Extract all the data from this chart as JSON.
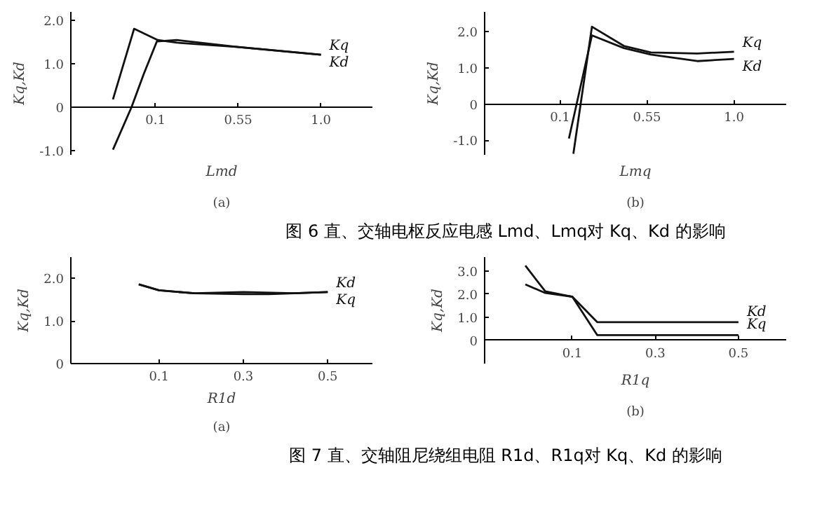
{
  "chart_data": [
    {
      "type": "line",
      "title": "图 6 直、交轴电枢反应电感 Lmd、Lmq对 Kq、Kd 的影响",
      "xlabel": "Lmd",
      "ylabel": "Kq,Kd",
      "xlim": [
        -0.36,
        1.28
      ],
      "ylim": [
        -1.1,
        2.2
      ],
      "xticks": [
        0.1,
        0.55,
        {
          "value": 1.0,
          "label": "1.0"
        }
      ],
      "yticks": [
        {
          "value": -1.0,
          "label": "-1.0"
        },
        {
          "value": 0,
          "label": "0"
        },
        {
          "value": 1.0,
          "label": "1.0"
        },
        {
          "value": 2.0,
          "label": "2.0"
        }
      ],
      "series": [
        {
          "name": "Kq",
          "color": "#111111",
          "x": [
            -0.131,
            -0.016,
            0.113,
            0.216,
            0.55,
            1.0
          ],
          "values": [
            0.18,
            1.81,
            1.55,
            1.49,
            1.39,
            1.21
          ]
        },
        {
          "name": "Kd",
          "color": "#111111",
          "x": [
            -0.131,
            -0.03,
            0.036,
            0.108,
            0.216,
            0.55,
            1.0
          ],
          "values": [
            -0.98,
            0,
            0.76,
            1.52,
            1.55,
            1.39,
            1.21
          ]
        }
      ],
      "annotations": [
        "(a)"
      ]
    },
    {
      "type": "line",
      "xlabel": "Lmq",
      "ylabel": "Kq,Kd",
      "xlim": [
        -0.29,
        1.27
      ],
      "ylim": [
        -1.4,
        2.55
      ],
      "xticks": [
        0.1,
        0.55,
        {
          "value": 1.0,
          "label": "1.0"
        }
      ],
      "yticks": [
        {
          "value": -1.0,
          "label": "-1.0"
        },
        {
          "value": 0,
          "label": "0"
        },
        {
          "value": 1.0,
          "label": "1.0"
        },
        {
          "value": 2.0,
          "label": "2.0"
        }
      ],
      "series": [
        {
          "name": "Kq",
          "color": "#111111",
          "x": [
            0.169,
            0.265,
            0.43,
            0.57,
            0.81,
            1.0
          ],
          "values": [
            -1.37,
            2.14,
            1.61,
            1.43,
            1.4,
            1.45
          ]
        },
        {
          "name": "Kd",
          "color": "#111111",
          "x": [
            0.146,
            0.265,
            0.43,
            0.57,
            0.81,
            1.0
          ],
          "values": [
            -0.95,
            1.9,
            1.55,
            1.37,
            1.19,
            1.25
          ]
        }
      ],
      "annotations": [
        "(b)"
      ]
    },
    {
      "type": "line",
      "title": "图 7 直、交轴阻尼绕组电阻 R1d、R1q对 Kq、Kd 的影响",
      "xlabel": "R1d",
      "ylabel": "Kq,Kd",
      "xlim": [
        -0.109,
        0.606
      ],
      "ylim": [
        0,
        2.5
      ],
      "xticks": [
        0.1,
        0.3,
        0.5
      ],
      "yticks": [
        {
          "value": 0,
          "label": "0"
        },
        {
          "value": 1.0,
          "label": "1.0"
        },
        {
          "value": 2.0,
          "label": "2.0"
        }
      ],
      "series": [
        {
          "name": "Kd",
          "color": "#111111",
          "x": [
            0.052,
            0.1,
            0.184,
            0.3,
            0.42,
            0.5
          ],
          "values": [
            1.86,
            1.72,
            1.65,
            1.68,
            1.65,
            1.68
          ]
        },
        {
          "name": "Kq",
          "color": "#111111",
          "x": [
            0.052,
            0.1,
            0.184,
            0.3,
            0.36,
            0.42,
            0.5
          ],
          "values": [
            1.86,
            1.72,
            1.65,
            1.63,
            1.63,
            1.65,
            1.68
          ]
        }
      ],
      "annotations": [
        "(a)"
      ]
    },
    {
      "type": "line",
      "xlabel": "R1q",
      "ylabel": "Kq,Kd",
      "xlim": [
        -0.111,
        0.615
      ],
      "ylim": [
        -1.0,
        3.6
      ],
      "xticks": [
        0.1,
        0.3,
        0.5
      ],
      "yticks": [
        {
          "value": 0,
          "label": "0"
        },
        {
          "value": 1.0,
          "label": "1.0"
        },
        {
          "value": 2.0,
          "label": "2.0"
        },
        {
          "value": 3.0,
          "label": "3.0"
        }
      ],
      "series": [
        {
          "name": "Kd",
          "color": "#111111",
          "x": [
            -0.013,
            0.035,
            0.1,
            0.16,
            0.5
          ],
          "values": [
            3.23,
            2.12,
            1.89,
            0.79,
            0.79
          ]
        },
        {
          "name": "Kq",
          "color": "#111111",
          "x": [
            -0.013,
            0.035,
            0.1,
            0.16,
            0.5
          ],
          "values": [
            2.42,
            2.05,
            1.89,
            0.23,
            0.23
          ]
        }
      ],
      "annotations": [
        "(b)"
      ]
    }
  ]
}
